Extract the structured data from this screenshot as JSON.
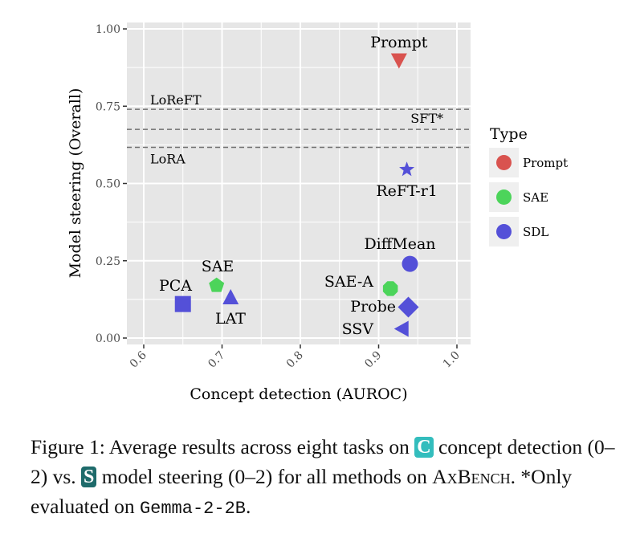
{
  "chart_data": {
    "type": "scatter",
    "title": "",
    "xlabel": "Concept detection (AUROC)",
    "ylabel": "Model steering (Overall)",
    "xlim": [
      0.58,
      1.02
    ],
    "ylim": [
      -0.02,
      1.0
    ],
    "grid": true,
    "x_ticks": [
      0.6,
      0.7,
      0.8,
      0.9,
      1.0
    ],
    "x_tick_labels": [
      "0.6",
      "0.7",
      "0.8",
      "0.9",
      "1.0"
    ],
    "y_ticks": [
      0.0,
      0.25,
      0.5,
      0.75,
      1.0
    ],
    "y_tick_labels": [
      "0.00",
      "0.25",
      "0.50",
      "0.75",
      "1.00"
    ],
    "legend": {
      "title": "Type",
      "placement": "right",
      "entries": [
        {
          "name": "Prompt",
          "color": "#D9534F"
        },
        {
          "name": "SAE",
          "color": "#4CD45A"
        },
        {
          "name": "SDL",
          "color": "#5450D8"
        }
      ]
    },
    "points": [
      {
        "label": "Prompt",
        "type": "Prompt",
        "shape": "triangle-down",
        "x": 0.926,
        "y": 0.9,
        "label_pos": "above"
      },
      {
        "label": "ReFT-r1",
        "type": "SDL",
        "shape": "star",
        "x": 0.936,
        "y": 0.545,
        "label_pos": "below"
      },
      {
        "label": "DiffMean",
        "type": "SDL",
        "shape": "circle",
        "x": 0.94,
        "y": 0.24,
        "label_pos": "above"
      },
      {
        "label": "SAE-A",
        "type": "SAE",
        "shape": "octagon",
        "x": 0.915,
        "y": 0.16,
        "label_pos": "left"
      },
      {
        "label": "Probe",
        "type": "SDL",
        "shape": "diamond",
        "x": 0.938,
        "y": 0.1,
        "label_pos": "left"
      },
      {
        "label": "SSV",
        "type": "SDL",
        "shape": "triangle-left",
        "x": 0.931,
        "y": 0.03,
        "label_pos": "left"
      },
      {
        "label": "PCA",
        "type": "SDL",
        "shape": "square",
        "x": 0.65,
        "y": 0.11,
        "label_pos": "above-left"
      },
      {
        "label": "SAE",
        "type": "SAE",
        "shape": "pentagon",
        "x": 0.693,
        "y": 0.17,
        "label_pos": "above"
      },
      {
        "label": "LAT",
        "type": "SDL",
        "shape": "triangle-up",
        "x": 0.711,
        "y": 0.13,
        "label_pos": "below"
      }
    ],
    "reference_lines": [
      {
        "label": "LoReFT",
        "y": 0.74,
        "label_pos": "above-left"
      },
      {
        "label": "SFT*",
        "y": 0.675,
        "label_pos": "above-right"
      },
      {
        "label": "LoRA",
        "y": 0.617,
        "label_pos": "below-left"
      }
    ],
    "colors": {
      "panel_bg": "#E6E6E6",
      "grid": "#FFFFFF",
      "ref_line": "#707070",
      "legend_key_bg": "#EFEFEF"
    }
  },
  "caption": {
    "prefix": "Figure 1: Average results across eight tasks on ",
    "badge_c": "C",
    "badge_c_color": "#33BDBD",
    "part2": " concept detection (0–2) vs. ",
    "badge_s": "S",
    "badge_s_color": "#1E6B6B",
    "part3": " model steering (0–2) for all methods on ",
    "benchmark": "AxBench",
    "part4": ". *Only evaluated on ",
    "model": "Gemma-2-2B",
    "suffix": "."
  }
}
